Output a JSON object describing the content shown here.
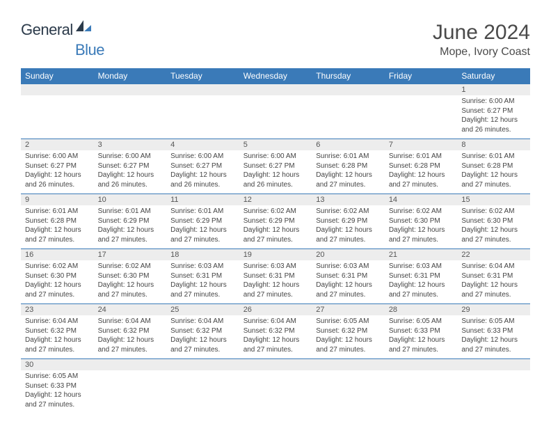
{
  "logo": {
    "word1": "General",
    "word2": "Blue"
  },
  "title": "June 2024",
  "location": "Mope, Ivory Coast",
  "colors": {
    "header_bg": "#3a7ab8",
    "header_fg": "#ffffff",
    "daynum_bg": "#ededed",
    "row_border": "#3a7ab8",
    "text": "#444444",
    "logo_dark": "#2b3a4a",
    "logo_blue": "#3a7ab8"
  },
  "day_headers": [
    "Sunday",
    "Monday",
    "Tuesday",
    "Wednesday",
    "Thursday",
    "Friday",
    "Saturday"
  ],
  "weeks": [
    {
      "nums": [
        "",
        "",
        "",
        "",
        "",
        "",
        "1"
      ],
      "details": [
        "",
        "",
        "",
        "",
        "",
        "",
        "Sunrise: 6:00 AM\nSunset: 6:27 PM\nDaylight: 12 hours and 26 minutes."
      ]
    },
    {
      "nums": [
        "2",
        "3",
        "4",
        "5",
        "6",
        "7",
        "8"
      ],
      "details": [
        "Sunrise: 6:00 AM\nSunset: 6:27 PM\nDaylight: 12 hours and 26 minutes.",
        "Sunrise: 6:00 AM\nSunset: 6:27 PM\nDaylight: 12 hours and 26 minutes.",
        "Sunrise: 6:00 AM\nSunset: 6:27 PM\nDaylight: 12 hours and 26 minutes.",
        "Sunrise: 6:00 AM\nSunset: 6:27 PM\nDaylight: 12 hours and 26 minutes.",
        "Sunrise: 6:01 AM\nSunset: 6:28 PM\nDaylight: 12 hours and 27 minutes.",
        "Sunrise: 6:01 AM\nSunset: 6:28 PM\nDaylight: 12 hours and 27 minutes.",
        "Sunrise: 6:01 AM\nSunset: 6:28 PM\nDaylight: 12 hours and 27 minutes."
      ]
    },
    {
      "nums": [
        "9",
        "10",
        "11",
        "12",
        "13",
        "14",
        "15"
      ],
      "details": [
        "Sunrise: 6:01 AM\nSunset: 6:28 PM\nDaylight: 12 hours and 27 minutes.",
        "Sunrise: 6:01 AM\nSunset: 6:29 PM\nDaylight: 12 hours and 27 minutes.",
        "Sunrise: 6:01 AM\nSunset: 6:29 PM\nDaylight: 12 hours and 27 minutes.",
        "Sunrise: 6:02 AM\nSunset: 6:29 PM\nDaylight: 12 hours and 27 minutes.",
        "Sunrise: 6:02 AM\nSunset: 6:29 PM\nDaylight: 12 hours and 27 minutes.",
        "Sunrise: 6:02 AM\nSunset: 6:30 PM\nDaylight: 12 hours and 27 minutes.",
        "Sunrise: 6:02 AM\nSunset: 6:30 PM\nDaylight: 12 hours and 27 minutes."
      ]
    },
    {
      "nums": [
        "16",
        "17",
        "18",
        "19",
        "20",
        "21",
        "22"
      ],
      "details": [
        "Sunrise: 6:02 AM\nSunset: 6:30 PM\nDaylight: 12 hours and 27 minutes.",
        "Sunrise: 6:02 AM\nSunset: 6:30 PM\nDaylight: 12 hours and 27 minutes.",
        "Sunrise: 6:03 AM\nSunset: 6:31 PM\nDaylight: 12 hours and 27 minutes.",
        "Sunrise: 6:03 AM\nSunset: 6:31 PM\nDaylight: 12 hours and 27 minutes.",
        "Sunrise: 6:03 AM\nSunset: 6:31 PM\nDaylight: 12 hours and 27 minutes.",
        "Sunrise: 6:03 AM\nSunset: 6:31 PM\nDaylight: 12 hours and 27 minutes.",
        "Sunrise: 6:04 AM\nSunset: 6:31 PM\nDaylight: 12 hours and 27 minutes."
      ]
    },
    {
      "nums": [
        "23",
        "24",
        "25",
        "26",
        "27",
        "28",
        "29"
      ],
      "details": [
        "Sunrise: 6:04 AM\nSunset: 6:32 PM\nDaylight: 12 hours and 27 minutes.",
        "Sunrise: 6:04 AM\nSunset: 6:32 PM\nDaylight: 12 hours and 27 minutes.",
        "Sunrise: 6:04 AM\nSunset: 6:32 PM\nDaylight: 12 hours and 27 minutes.",
        "Sunrise: 6:04 AM\nSunset: 6:32 PM\nDaylight: 12 hours and 27 minutes.",
        "Sunrise: 6:05 AM\nSunset: 6:32 PM\nDaylight: 12 hours and 27 minutes.",
        "Sunrise: 6:05 AM\nSunset: 6:33 PM\nDaylight: 12 hours and 27 minutes.",
        "Sunrise: 6:05 AM\nSunset: 6:33 PM\nDaylight: 12 hours and 27 minutes."
      ]
    },
    {
      "nums": [
        "30",
        "",
        "",
        "",
        "",
        "",
        ""
      ],
      "details": [
        "Sunrise: 6:05 AM\nSunset: 6:33 PM\nDaylight: 12 hours and 27 minutes.",
        "",
        "",
        "",
        "",
        "",
        ""
      ]
    }
  ]
}
